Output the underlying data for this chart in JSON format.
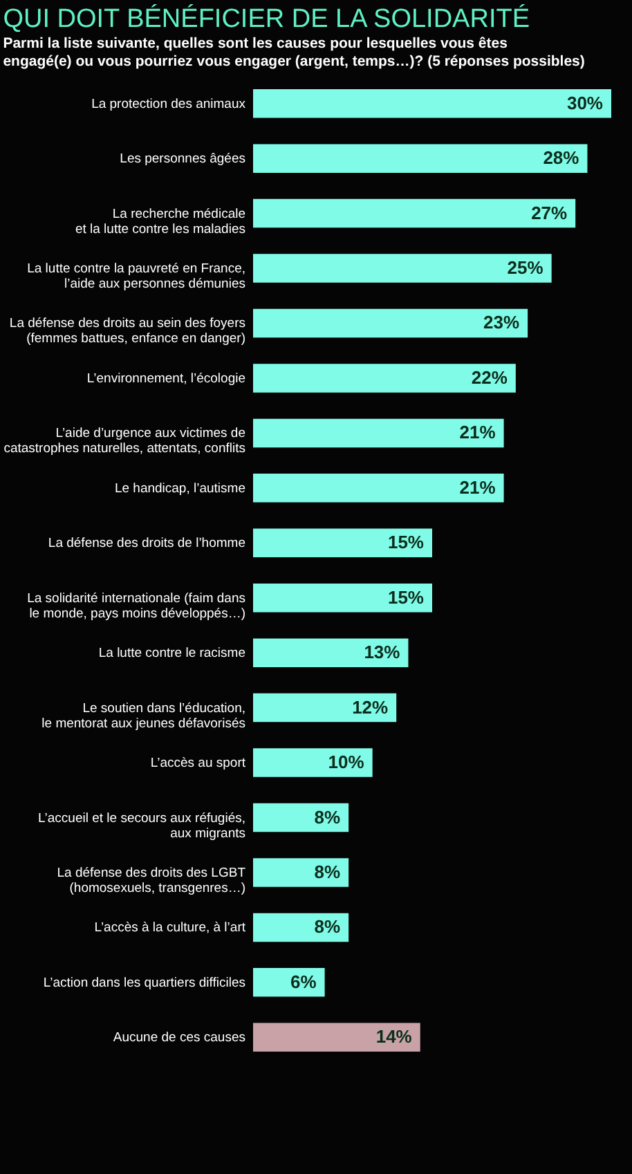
{
  "chart_data": {
    "type": "bar",
    "orientation": "horizontal",
    "title": "QUI DOIT BÉNÉFICIER DE LA SOLIDARITÉ",
    "subtitle": "Parmi la liste suivante, quelles sont les causes pour lesquelles vous êtes\nengagé(e) ou vous pourriez vous engager (argent, temps…)? (5 réponses possibles)",
    "categories": [
      "La protection des animaux",
      "Les personnes âgées",
      "La recherche médicale\net la lutte contre les maladies",
      "La lutte contre la pauvreté en France,\nl’aide aux personnes démunies",
      "La défense des droits au sein des foyers\n(femmes battues, enfance en danger)",
      "L’environnement, l’écologie",
      "L’aide d’urgence aux victimes de\ncatastrophes naturelles, attentats, conflits",
      "Le handicap, l’autisme",
      "La défense des droits de l’homme",
      "La solidarité internationale (faim dans\nle monde, pays moins développés…)",
      "La lutte contre le racisme",
      "Le soutien dans l’éducation,\nle mentorat aux jeunes défavorisés",
      "L’accès au sport",
      "L’accueil et le secours aux réfugiés,\naux migrants",
      "La défense des droits des LGBT\n(homosexuels, transgenres…)",
      "L’accès à la culture, à l’art",
      "L’action dans les quartiers difficiles",
      "Aucune de ces causes"
    ],
    "values": [
      30,
      28,
      27,
      25,
      23,
      22,
      21,
      21,
      15,
      15,
      13,
      12,
      10,
      8,
      8,
      8,
      6,
      14
    ],
    "colors": [
      "#80fbe8",
      "#80fbe8",
      "#80fbe8",
      "#80fbe8",
      "#80fbe8",
      "#80fbe8",
      "#80fbe8",
      "#80fbe8",
      "#80fbe8",
      "#80fbe8",
      "#80fbe8",
      "#80fbe8",
      "#80fbe8",
      "#80fbe8",
      "#80fbe8",
      "#80fbe8",
      "#80fbe8",
      "#c8a2a6"
    ],
    "value_labels": [
      "30%",
      "28%",
      "27%",
      "25%",
      "23%",
      "22%",
      "21%",
      "21%",
      "15%",
      "15%",
      "13%",
      "12%",
      "10%",
      "8%",
      "8%",
      "8%",
      "6%",
      "14%"
    ]
  }
}
